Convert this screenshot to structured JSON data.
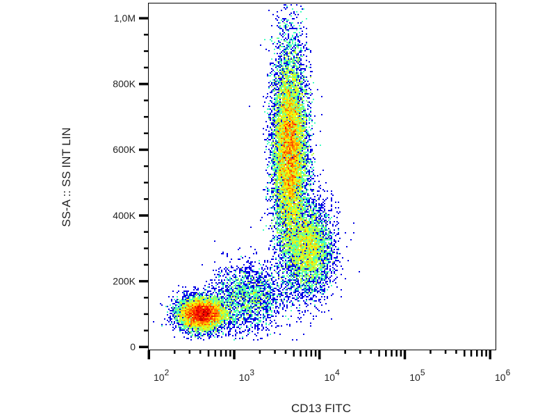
{
  "chart_data": {
    "type": "scatter",
    "subtype": "density-dot-plot",
    "title": "",
    "xlabel": "CD13 FITC",
    "ylabel": "SS-A :: SS INT LIN",
    "xscale": "log",
    "yscale": "linear",
    "xlim": [
      100,
      1000000
    ],
    "ylim": [
      0,
      1050000
    ],
    "x_ticks": [
      {
        "value": 100,
        "base": "10",
        "exp": "2"
      },
      {
        "value": 1000,
        "base": "10",
        "exp": "3"
      },
      {
        "value": 10000,
        "base": "10",
        "exp": "4"
      },
      {
        "value": 100000,
        "base": "10",
        "exp": "5"
      },
      {
        "value": 1000000,
        "base": "10",
        "exp": "6"
      }
    ],
    "y_ticks": [
      {
        "value": 0,
        "label": "0"
      },
      {
        "value": 200000,
        "label": "200K"
      },
      {
        "value": 400000,
        "label": "400K"
      },
      {
        "value": 600000,
        "label": "600K"
      },
      {
        "value": 800000,
        "label": "800K"
      },
      {
        "value": 1000000,
        "label": "1,0M"
      }
    ],
    "grid": false,
    "color_scale": "jet (blue = low density, red = high density)",
    "populations": [
      {
        "x_center": 420,
        "y_center": 100000,
        "x_log_sd": 0.14,
        "y_sd": 25000,
        "weight": 0.25
      },
      {
        "x_center": 4500,
        "y_center": 600000,
        "x_log_sd": 0.1,
        "y_sd": 150000,
        "weight": 0.5
      },
      {
        "x_center": 7500,
        "y_center": 300000,
        "x_log_sd": 0.14,
        "y_sd": 70000,
        "weight": 0.17
      },
      {
        "x_center": 1500,
        "y_center": 150000,
        "x_log_sd": 0.2,
        "y_sd": 50000,
        "weight": 0.08
      }
    ]
  }
}
